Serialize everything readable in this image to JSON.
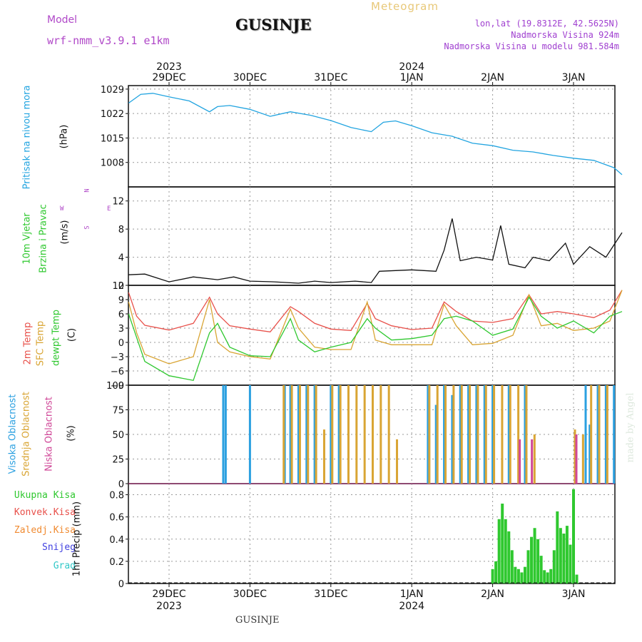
{
  "header": {
    "model_label": "Model",
    "model_name": "wrf-nmm_v3.9.1  e1km",
    "station_title": "GUSINJE",
    "product": "Meteogram",
    "coords": "lon,lat (19.8312E, 42.5625N)",
    "altitude": "Nadmorska Visina 924m",
    "model_altitude": "Nadmorska Visina u modelu 981.584m"
  },
  "footer": {
    "station": "GUSINJE",
    "credit": "made by Angel"
  },
  "colors": {
    "pressure": "#22a4e0",
    "t2m": "#e8504a",
    "sfc": "#d9a534",
    "dewpoint": "#2fc82f",
    "high_cloud": "#2ba0e0",
    "mid_cloud": "#d9a534",
    "low_cloud": "#d04898",
    "total_precip": "#2fc82f"
  },
  "top_axis": {
    "dates": [
      "29DEC",
      "30DEC",
      "31DEC",
      "1JAN",
      "2JAN",
      "3JAN"
    ],
    "years": [
      {
        "at": "29DEC",
        "year": "2023"
      },
      {
        "at": "1JAN",
        "year": "2024"
      }
    ]
  },
  "bottom_axis": {
    "dates": [
      "29DEC",
      "30DEC",
      "31DEC",
      "1JAN",
      "2JAN",
      "3JAN"
    ],
    "years": [
      {
        "at": "29DEC",
        "year": "2023"
      },
      {
        "at": "1JAN",
        "year": "2024"
      }
    ]
  },
  "panels": {
    "pressure": {
      "label1": "Pritisak na nivou mora",
      "unit": "(hPa)"
    },
    "wind": {
      "label1": "10m Vjetar",
      "label2": "Brzina i Pravac",
      "unit": "(m/s)",
      "compass": {
        "w": "W",
        "e": "E",
        "n": "N",
        "s": "S"
      }
    },
    "temp": {
      "label1": "2m Temp",
      "label2": "SFC Temp",
      "label3": "dewpt Temp",
      "unit": "(C)"
    },
    "cloud": {
      "label1": "Visoka Oblacnost",
      "label2": "Srednja Oblacnost",
      "label3": "Niska Oblacnost",
      "unit": "(%)"
    },
    "precip": {
      "legend": [
        "Ukupna Kisa",
        "Konvek.Kisa",
        "Zaledj.Kisa",
        "Snijeg",
        "Grad"
      ],
      "legend_colors": [
        "#2fc82f",
        "#e8504a",
        "#f08a30",
        "#4040e0",
        "#30c8c8"
      ],
      "unit": "1hr Precip (mm)"
    }
  },
  "chart_data": [
    {
      "type": "line",
      "panel": "pressure",
      "ylabel": "Pritisak na nivou mora (hPa)",
      "ylim": [
        1001,
        1030
      ],
      "yticks": [
        1008,
        1015,
        1022,
        1029
      ],
      "x_days_from_29dec": [
        -0.5,
        -0.35,
        -0.2,
        0,
        0.25,
        0.5,
        0.6,
        0.75,
        1.0,
        1.25,
        1.5,
        1.75,
        2.0,
        2.25,
        2.5,
        2.65,
        2.8,
        3.0,
        3.25,
        3.5,
        3.75,
        4.0,
        4.25,
        4.5,
        4.75,
        5.0,
        5.25,
        5.5,
        5.6
      ],
      "values": [
        1025,
        1027.5,
        1027.8,
        1026.8,
        1025.6,
        1022.5,
        1024,
        1024.3,
        1023.2,
        1021.2,
        1022.5,
        1021.5,
        1020,
        1018,
        1016.8,
        1019.5,
        1019.9,
        1018.5,
        1016.5,
        1015.5,
        1013.5,
        1012.8,
        1011.5,
        1011,
        1010,
        1009.2,
        1008.6,
        1006.5,
        1004.5
      ]
    },
    {
      "type": "line",
      "panel": "wind",
      "ylabel": "10m Vjetar Brzina i Pravac (m/s)",
      "ylim": [
        0,
        14
      ],
      "yticks": [
        0,
        4,
        8,
        12
      ],
      "series": [
        {
          "name": "wind speed",
          "x_days_from_29dec": [
            -0.5,
            -0.3,
            0,
            0.3,
            0.6,
            0.8,
            1.0,
            1.3,
            1.6,
            1.8,
            2.0,
            2.3,
            2.5,
            2.6,
            3.0,
            3.3,
            3.4,
            3.5,
            3.6,
            3.8,
            4.0,
            4.1,
            4.2,
            4.4,
            4.5,
            4.7,
            4.9,
            5.0,
            5.2,
            5.4,
            5.6
          ],
          "values": [
            1.5,
            1.6,
            0.5,
            1.2,
            0.8,
            1.2,
            0.6,
            0.5,
            0.3,
            0.6,
            0.4,
            0.6,
            0.4,
            2.0,
            2.2,
            2.0,
            5.0,
            9.5,
            3.5,
            4.0,
            3.6,
            8.5,
            3.0,
            2.5,
            4.0,
            3.5,
            6.0,
            3.0,
            5.5,
            4.0,
            7.5
          ]
        }
      ]
    },
    {
      "type": "line",
      "panel": "temp",
      "ylabel": "Temp (C)",
      "ylim": [
        -9,
        12
      ],
      "yticks": [
        -9,
        -6,
        -3,
        0,
        3,
        6,
        9,
        12
      ],
      "x_days_from_29dec": [
        -0.5,
        -0.4,
        -0.3,
        0,
        0.3,
        0.5,
        0.6,
        0.75,
        1.0,
        1.25,
        1.5,
        1.6,
        1.8,
        2.0,
        2.25,
        2.45,
        2.55,
        2.75,
        3.0,
        3.25,
        3.4,
        3.55,
        3.75,
        4.0,
        4.25,
        4.45,
        4.6,
        4.8,
        5.0,
        5.25,
        5.45,
        5.6
      ],
      "series": [
        {
          "name": "2m Temp",
          "values": [
            10.5,
            5.5,
            3.6,
            2.6,
            4.0,
            9.5,
            6.0,
            3.5,
            2.8,
            2.2,
            7.5,
            6.5,
            4.0,
            2.8,
            2.5,
            8.2,
            5.0,
            3.5,
            2.7,
            3.0,
            8.5,
            6.5,
            4.5,
            4.2,
            5.0,
            10.0,
            6.0,
            6.5,
            6.0,
            5.2,
            6.8,
            11.0
          ]
        },
        {
          "name": "SFC Temp",
          "values": [
            8.5,
            2.0,
            -2.5,
            -4.5,
            -3.0,
            9.0,
            0.0,
            -2.0,
            -3.0,
            -3.5,
            7.0,
            3.0,
            -1.0,
            -1.5,
            -1.5,
            8.5,
            0.5,
            -0.5,
            -0.5,
            -0.5,
            8.0,
            3.5,
            -0.5,
            -0.2,
            1.5,
            10.0,
            3.5,
            4.0,
            2.5,
            3.0,
            4.5,
            11.0
          ]
        },
        {
          "name": "dewpt Temp",
          "values": [
            6.0,
            1.0,
            -4.0,
            -7.0,
            -8.0,
            2.0,
            4.0,
            -1.0,
            -2.8,
            -3.0,
            5.0,
            0.5,
            -2.0,
            -1.0,
            0.0,
            5.0,
            3.0,
            0.5,
            0.8,
            1.5,
            5.0,
            5.5,
            4.5,
            1.5,
            2.8,
            9.5,
            5.5,
            3.0,
            4.5,
            2.0,
            5.5,
            6.5
          ]
        }
      ]
    },
    {
      "type": "bar",
      "panel": "cloud",
      "ylabel": "Oblacnost (%)",
      "ylim": [
        0,
        100
      ],
      "yticks": [
        0,
        25,
        50,
        75,
        100
      ],
      "series": [
        {
          "name": "Visoka Oblacnost",
          "x_days_from_29dec": [
            0.67,
            0.7,
            1.0,
            1.43,
            1.5,
            1.6,
            1.7,
            1.8,
            2.0,
            2.1,
            3.2,
            3.3,
            3.4,
            3.5,
            3.6,
            3.7,
            3.8,
            3.9,
            4.0,
            4.2,
            4.4,
            5.15,
            5.2,
            5.3,
            5.4,
            5.5,
            5.6
          ],
          "values": [
            100,
            100,
            100,
            100,
            100,
            100,
            100,
            100,
            100,
            100,
            100,
            80,
            100,
            90,
            100,
            100,
            100,
            100,
            100,
            100,
            100,
            100,
            60,
            100,
            100,
            100,
            100
          ]
        },
        {
          "name": "Srednja Oblacnost",
          "x_days_from_29dec": [
            1.4,
            1.5,
            1.6,
            1.7,
            1.8,
            1.9,
            2.0,
            2.1,
            2.2,
            2.3,
            2.4,
            2.5,
            2.6,
            2.7,
            2.8,
            3.2,
            3.3,
            3.4,
            3.5,
            3.6,
            3.7,
            3.8,
            3.9,
            4.0,
            4.1,
            4.2,
            4.3,
            4.4,
            4.5,
            5.0,
            5.1,
            5.2,
            5.3,
            5.4,
            5.5,
            5.6
          ],
          "values": [
            100,
            100,
            100,
            100,
            100,
            55,
            100,
            100,
            100,
            100,
            100,
            100,
            100,
            100,
            45,
            100,
            100,
            100,
            100,
            100,
            100,
            100,
            100,
            100,
            100,
            100,
            100,
            100,
            50,
            55,
            50,
            100,
            100,
            100,
            100,
            100
          ]
        },
        {
          "name": "Niska Oblacnost",
          "x_days_from_29dec": [
            4.3,
            4.45,
            5.0
          ],
          "values": [
            45,
            45,
            50
          ]
        }
      ]
    },
    {
      "type": "bar",
      "panel": "precip",
      "ylabel": "1hr Precip (mm)",
      "ylim": [
        0,
        0.9
      ],
      "yticks": [
        0,
        0.2,
        0.4,
        0.6,
        0.8
      ],
      "series": [
        {
          "name": "Ukupna Kisa",
          "x_days_from_29dec": [
            4.0,
            4.04,
            4.08,
            4.12,
            4.16,
            4.2,
            4.24,
            4.28,
            4.32,
            4.36,
            4.4,
            4.44,
            4.48,
            4.52,
            4.56,
            4.6,
            4.64,
            4.68,
            4.72,
            4.76,
            4.8,
            4.84,
            4.88,
            4.92,
            4.96,
            5.0,
            5.04
          ],
          "values": [
            0.13,
            0.2,
            0.58,
            0.72,
            0.58,
            0.47,
            0.3,
            0.15,
            0.13,
            0.1,
            0.15,
            0.3,
            0.42,
            0.5,
            0.4,
            0.25,
            0.12,
            0.1,
            0.13,
            0.3,
            0.65,
            0.5,
            0.45,
            0.52,
            0.35,
            0.85,
            0.08
          ]
        }
      ]
    }
  ]
}
